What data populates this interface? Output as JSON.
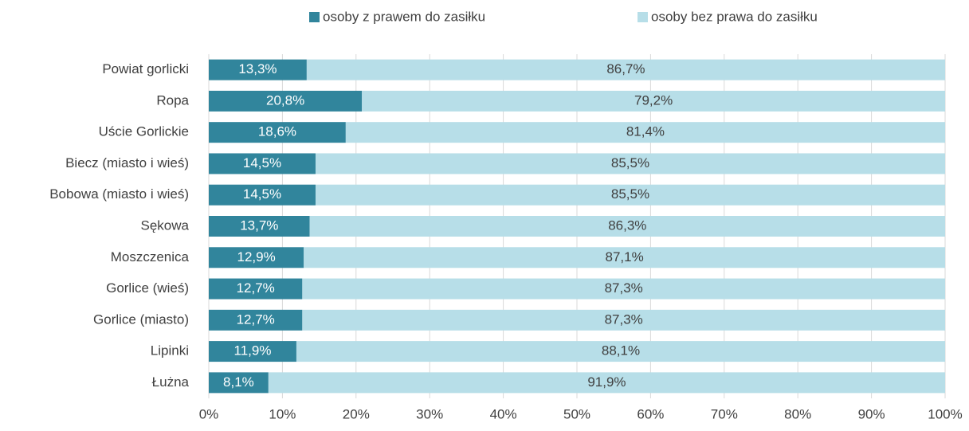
{
  "chart_data": {
    "type": "stacked_bar_horizontal",
    "categories": [
      "Powiat gorlicki",
      "Ropa",
      "Uście Gorlickie",
      "Biecz (miasto i wieś)",
      "Bobowa (miasto i wieś)",
      "Sękowa",
      "Moszczenica",
      "Gorlice (wieś)",
      "Gorlice (miasto)",
      "Lipinki",
      "Łużna"
    ],
    "series": [
      {
        "name": "osoby z prawem do zasiłku",
        "color": "#31859c",
        "label_color": "#ffffff",
        "values": [
          13.3,
          20.8,
          18.6,
          14.5,
          14.5,
          13.7,
          12.9,
          12.7,
          12.7,
          11.9,
          8.1
        ],
        "value_labels": [
          "13,3%",
          "20,8%",
          "18,6%",
          "14,5%",
          "14,5%",
          "13,7%",
          "12,9%",
          "12,7%",
          "12,7%",
          "11,9%",
          "8,1%"
        ]
      },
      {
        "name": "osoby bez prawa do zasiłku",
        "color": "#b7dee8",
        "label_color": "#404040",
        "values": [
          86.7,
          79.2,
          81.4,
          85.5,
          85.5,
          86.3,
          87.1,
          87.3,
          87.3,
          88.1,
          91.9
        ],
        "value_labels": [
          "86,7%",
          "79,2%",
          "81,4%",
          "85,5%",
          "85,5%",
          "86,3%",
          "87,1%",
          "87,3%",
          "87,3%",
          "88,1%",
          "91,9%"
        ]
      }
    ],
    "xlim": [
      0,
      100
    ],
    "xticks": [
      {
        "value": 0,
        "label": "0%"
      },
      {
        "value": 10,
        "label": "10%"
      },
      {
        "value": 20,
        "label": "20%"
      },
      {
        "value": 30,
        "label": "30%"
      },
      {
        "value": 40,
        "label": "40%"
      },
      {
        "value": 50,
        "label": "50%"
      },
      {
        "value": 60,
        "label": "60%"
      },
      {
        "value": 70,
        "label": "70%"
      },
      {
        "value": 80,
        "label": "80%"
      },
      {
        "value": 90,
        "label": "90%"
      },
      {
        "value": 100,
        "label": "100%"
      }
    ],
    "grid": true,
    "legend": "top"
  }
}
